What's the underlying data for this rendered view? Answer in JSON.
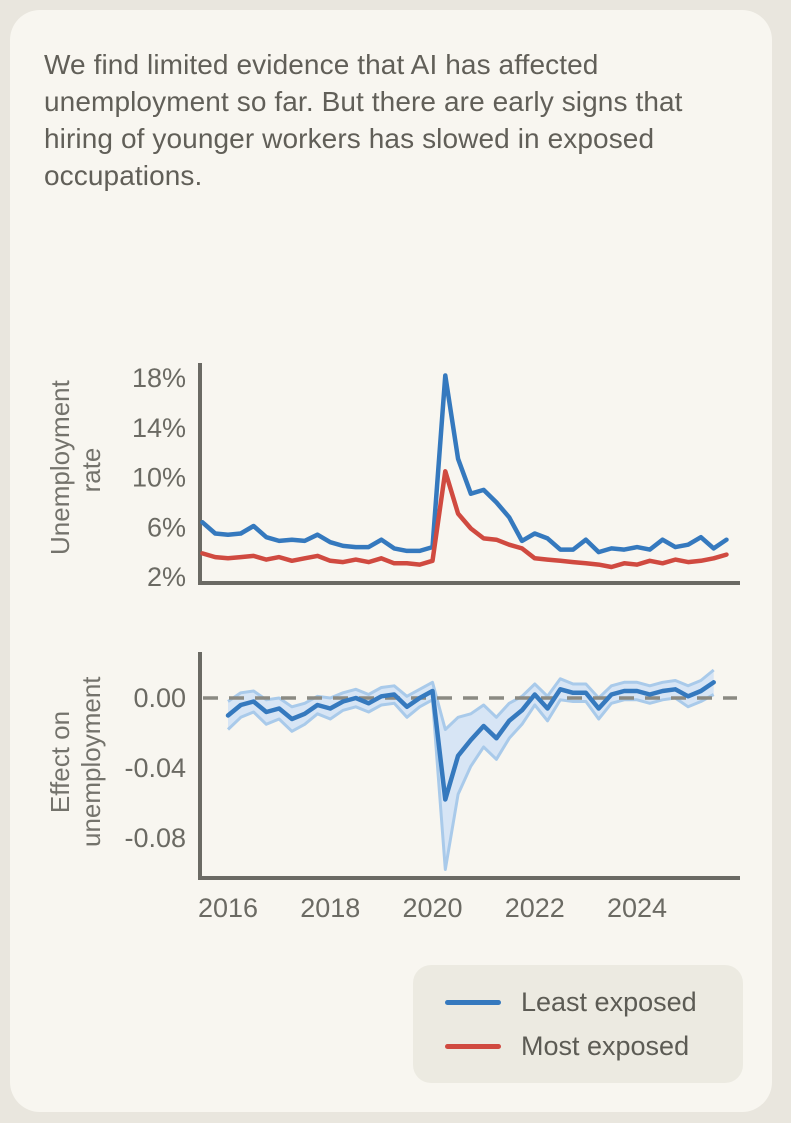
{
  "figure": {
    "title": "We find limited evidence that AI has affected unemployment so far. But there are early signs that hiring of younger workers has slowed in exposed occupations."
  },
  "colors": {
    "outer_bg": "#e9e6de",
    "card_bg": "#f8f6f0",
    "title_text": "#615f58",
    "axis": "#6b6a64",
    "tick_text": "#6b6a63",
    "axis_label_text": "#74736c",
    "least_exposed": "#3579be",
    "most_exposed": "#d04a40",
    "band_fill": "#d7e5f5",
    "band_edge": "#a9caea",
    "zero_dash": "#8b8a82",
    "legend_bg": "#eceae1",
    "legend_text": "#5c5b54"
  },
  "legend": {
    "items": [
      {
        "label": "Least exposed",
        "color": "least_exposed"
      },
      {
        "label": "Most exposed",
        "color": "most_exposed"
      }
    ]
  },
  "chart_data": [
    {
      "type": "line",
      "title": "",
      "xlabel": "",
      "ylabel": "Unemployment rate",
      "y_ticks": [
        "18%",
        "14%",
        "10%",
        "6%",
        "2%"
      ],
      "y_tick_values": [
        18,
        14,
        10,
        6,
        2
      ],
      "ylim": [
        2,
        19
      ],
      "xlim": [
        2015.45,
        2025.95
      ],
      "grid": false,
      "legend_position": "below-right",
      "x_ticks": [
        2016,
        2018,
        2020,
        2022,
        2024
      ],
      "x": [
        2015.5,
        2015.75,
        2016.0,
        2016.25,
        2016.5,
        2016.75,
        2017.0,
        2017.25,
        2017.5,
        2017.75,
        2018.0,
        2018.25,
        2018.5,
        2018.75,
        2019.0,
        2019.25,
        2019.5,
        2019.75,
        2020.0,
        2020.25,
        2020.5,
        2020.75,
        2021.0,
        2021.25,
        2021.5,
        2021.75,
        2022.0,
        2022.25,
        2022.5,
        2022.75,
        2023.0,
        2023.25,
        2023.5,
        2023.75,
        2024.0,
        2024.25,
        2024.5,
        2024.75,
        2025.0,
        2025.25,
        2025.5,
        2025.75
      ],
      "series": [
        {
          "name": "Least exposed",
          "color": "least_exposed",
          "values": [
            6.4,
            5.5,
            5.4,
            5.5,
            6.1,
            5.2,
            4.9,
            5.0,
            4.9,
            5.4,
            4.8,
            4.5,
            4.4,
            4.4,
            5.0,
            4.3,
            4.1,
            4.1,
            4.4,
            18.2,
            11.5,
            8.7,
            9.0,
            8.0,
            6.8,
            4.9,
            5.5,
            5.1,
            4.2,
            4.2,
            5.0,
            4.0,
            4.3,
            4.2,
            4.4,
            4.2,
            5.0,
            4.4,
            4.6,
            5.2,
            4.3,
            5.0
          ]
        },
        {
          "name": "Most exposed",
          "color": "most_exposed",
          "values": [
            3.9,
            3.6,
            3.5,
            3.6,
            3.7,
            3.4,
            3.6,
            3.3,
            3.5,
            3.7,
            3.3,
            3.2,
            3.4,
            3.2,
            3.5,
            3.1,
            3.1,
            3.0,
            3.3,
            10.5,
            7.1,
            5.9,
            5.1,
            5.0,
            4.6,
            4.3,
            3.5,
            3.4,
            3.3,
            3.2,
            3.1,
            3.0,
            2.8,
            3.1,
            3.0,
            3.3,
            3.1,
            3.4,
            3.2,
            3.3,
            3.5,
            3.8
          ]
        }
      ]
    },
    {
      "type": "line",
      "title": "",
      "xlabel": "",
      "ylabel": "Effect on unemployment",
      "y_ticks": [
        "0.00",
        "-0.04",
        "-0.08"
      ],
      "y_tick_values": [
        0,
        -0.04,
        -0.08
      ],
      "ylim": [
        -0.105,
        0.02
      ],
      "xlim": [
        2015.45,
        2025.95
      ],
      "grid": false,
      "zero_line": true,
      "x_ticks": [
        2016,
        2018,
        2020,
        2022,
        2024
      ],
      "x": [
        2016.0,
        2016.25,
        2016.5,
        2016.75,
        2017.0,
        2017.25,
        2017.5,
        2017.75,
        2018.0,
        2018.25,
        2018.5,
        2018.75,
        2019.0,
        2019.25,
        2019.5,
        2019.75,
        2020.0,
        2020.25,
        2020.5,
        2020.75,
        2021.0,
        2021.25,
        2021.5,
        2021.75,
        2022.0,
        2022.25,
        2022.5,
        2022.75,
        2023.0,
        2023.25,
        2023.5,
        2023.75,
        2024.0,
        2024.25,
        2024.5,
        2024.75,
        2025.0,
        2025.25,
        2025.5
      ],
      "series": [
        {
          "name": "Effect on unemployment (least exposed)",
          "color": "least_exposed",
          "values": [
            -0.01,
            -0.004,
            -0.002,
            -0.008,
            -0.006,
            -0.012,
            -0.009,
            -0.004,
            -0.006,
            -0.002,
            0.0,
            -0.003,
            0.001,
            0.002,
            -0.005,
            0.0,
            0.004,
            -0.058,
            -0.033,
            -0.024,
            -0.016,
            -0.023,
            -0.013,
            -0.007,
            0.002,
            -0.006,
            0.005,
            0.003,
            0.003,
            -0.006,
            0.002,
            0.004,
            0.004,
            0.002,
            0.004,
            0.005,
            0.001,
            0.004,
            0.009
          ],
          "band_upper": [
            -0.002,
            0.003,
            0.004,
            -0.001,
            0.0,
            -0.005,
            -0.003,
            0.001,
            0.0,
            0.003,
            0.005,
            0.002,
            0.006,
            0.007,
            0.001,
            0.005,
            0.009,
            -0.018,
            -0.011,
            -0.009,
            -0.004,
            -0.011,
            -0.003,
            0.001,
            0.008,
            0.001,
            0.011,
            0.008,
            0.008,
            0.0,
            0.007,
            0.009,
            0.009,
            0.007,
            0.009,
            0.01,
            0.007,
            0.01,
            0.016
          ],
          "band_lower": [
            -0.018,
            -0.011,
            -0.008,
            -0.015,
            -0.012,
            -0.019,
            -0.015,
            -0.009,
            -0.012,
            -0.007,
            -0.005,
            -0.008,
            -0.004,
            -0.003,
            -0.011,
            -0.005,
            -0.001,
            -0.098,
            -0.055,
            -0.039,
            -0.028,
            -0.035,
            -0.023,
            -0.015,
            -0.004,
            -0.013,
            -0.001,
            -0.002,
            -0.002,
            -0.012,
            -0.003,
            -0.001,
            -0.001,
            -0.003,
            -0.001,
            0.0,
            -0.005,
            -0.002,
            0.002
          ]
        }
      ]
    }
  ]
}
